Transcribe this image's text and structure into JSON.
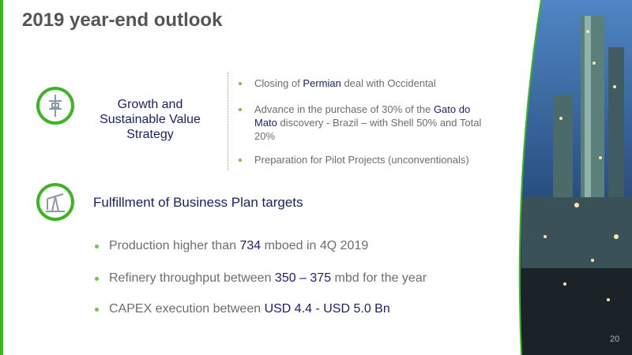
{
  "title": "2019 year-end outlook",
  "strategy": {
    "label": "Growth and Sustainable Value Strategy",
    "bullets": [
      [
        "Closing of ",
        "Permian",
        " deal with Occidental"
      ],
      [
        "Advance in the purchase of 30% of the ",
        "Gato do Mato",
        " discovery - Brazil – with Shell 50% and Total 20%"
      ],
      [
        "Preparation for Pilot Projects (unconventionals)"
      ]
    ]
  },
  "business_plan": {
    "heading": "Fulfillment of Business Plan targets",
    "bullets": [
      [
        "Production higher than ",
        "734",
        " mboed in 4Q 2019"
      ],
      [
        "Refinery throughput between ",
        "350 – 375",
        " mbd for the year"
      ],
      [
        "CAPEX execution between ",
        "USD 4.4 - USD 5.0 Bn"
      ]
    ]
  },
  "page_number": "20"
}
